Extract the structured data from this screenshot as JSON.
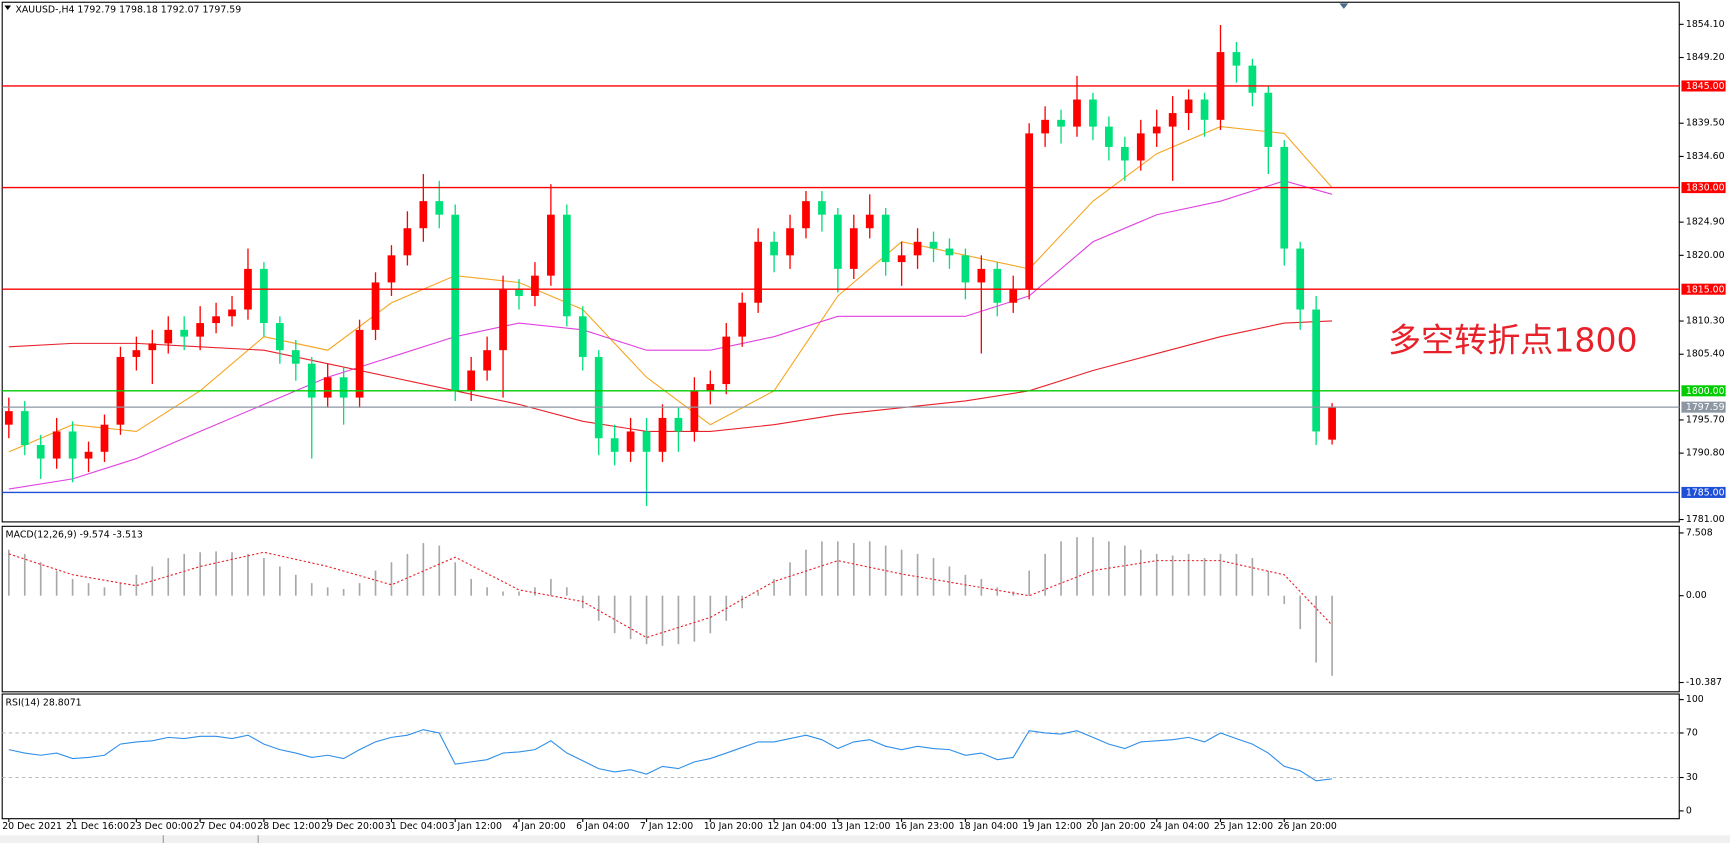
{
  "chart_data": [
    {
      "type": "candlestick",
      "title": "XAUUSD-,H4  1792.79 1798.18 1792.07 1797.59",
      "annotation": "多空转折点1800",
      "up_color": "#ff0000",
      "down_color": "#00e07a",
      "ylim": [
        1780.65,
        1857.36
      ],
      "yticks": [
        {
          "value": 1854.1,
          "label": "1854.10"
        },
        {
          "value": 1849.2,
          "label": "1849.20"
        },
        {
          "value": 1839.5,
          "label": "1839.50"
        },
        {
          "value": 1834.6,
          "label": "1834.60"
        },
        {
          "value": 1824.9,
          "label": "1824.90"
        },
        {
          "value": 1820.0,
          "label": "1820.00"
        },
        {
          "value": 1810.3,
          "label": "1810.30"
        },
        {
          "value": 1805.4,
          "label": "1805.40"
        },
        {
          "value": 1795.7,
          "label": "1795.70"
        },
        {
          "value": 1790.8,
          "label": "1790.80"
        },
        {
          "value": 1781.0,
          "label": "1781.00"
        }
      ],
      "levels": [
        {
          "value": 1845,
          "label": "1845.00",
          "color": "#ff0000"
        },
        {
          "value": 1830,
          "label": "1830.00",
          "color": "#ff0000"
        },
        {
          "value": 1815,
          "label": "1815.00",
          "color": "#ff0000"
        },
        {
          "value": 1800,
          "label": "1800.00",
          "color": "#00cc00"
        },
        {
          "value": 1785,
          "label": "1785.00",
          "color": "#1e4fd8"
        },
        {
          "value": 1797.59,
          "label": "1797.59",
          "color": "#8c97a3"
        }
      ],
      "categories": [
        "20 Dec 2021",
        null,
        null,
        null,
        "21 Dec 16:00",
        null,
        null,
        null,
        "23 Dec 00:00",
        null,
        null,
        null,
        "27 Dec 04:00",
        null,
        null,
        null,
        "28 Dec 12:00",
        null,
        null,
        null,
        "29 Dec 20:00",
        null,
        null,
        null,
        "31 Dec 04:00",
        null,
        null,
        null,
        "3 Jan 12:00",
        null,
        null,
        null,
        "4 Jan 20:00",
        null,
        null,
        null,
        "6 Jan 04:00",
        null,
        null,
        null,
        "7 Jan 12:00",
        null,
        null,
        null,
        "10 Jan 20:00",
        null,
        null,
        null,
        "12 Jan 04:00",
        null,
        null,
        null,
        "13 Jan 12:00",
        null,
        null,
        null,
        "16 Jan 23:00",
        null,
        null,
        null,
        "18 Jan 04:00",
        null,
        null,
        null,
        "19 Jan 12:00",
        null,
        null,
        null,
        "20 Jan 20:00",
        null,
        null,
        null,
        "24 Jan 04:00",
        null,
        null,
        null,
        "25 Jan 12:00",
        null,
        null,
        null,
        "26 Jan 20:00",
        null,
        null,
        null
      ],
      "open": [
        1795,
        1797,
        1792,
        1790,
        1794,
        1790,
        1791,
        1795,
        1805,
        1806,
        1807,
        1809,
        1808,
        1810,
        1811,
        1812,
        1818,
        1810,
        1806,
        1804,
        1799,
        1802,
        1799,
        1809,
        1816,
        1820,
        1824,
        1828,
        1826,
        1800,
        1803,
        1806,
        1815,
        1814,
        1817,
        1826,
        1811,
        1805,
        1793,
        1791,
        1794,
        1791,
        1796,
        1794,
        1800,
        1801,
        1808,
        1813,
        1822,
        1820,
        1824,
        1828,
        1826,
        1818,
        1824,
        1826,
        1819,
        1820,
        1822,
        1821,
        1820,
        1816,
        1818,
        1813,
        1815,
        1838,
        1840,
        1839,
        1843,
        1839,
        1836,
        1834,
        1838,
        1839,
        1841,
        1843,
        1840,
        1850,
        1848,
        1844,
        1836,
        1821,
        1812,
        1792.79
      ],
      "high": [
        1799,
        1798.5,
        1793.5,
        1796,
        1795.5,
        1792.5,
        1796.5,
        1806.5,
        1808,
        1809,
        1811,
        1811,
        1812.5,
        1813,
        1814,
        1821,
        1819,
        1811,
        1807.5,
        1805,
        1804,
        1803.5,
        1810.5,
        1817.5,
        1821.5,
        1826.5,
        1832,
        1831,
        1827.5,
        1805,
        1808,
        1817,
        1816.5,
        1819,
        1830.5,
        1827.5,
        1812.5,
        1806,
        1795,
        1796,
        1796,
        1798,
        1797.5,
        1802,
        1803,
        1810,
        1814.5,
        1824,
        1823.5,
        1826,
        1829.5,
        1829.5,
        1827,
        1826,
        1829,
        1827,
        1822,
        1824,
        1823.5,
        1822.5,
        1821,
        1820,
        1819,
        1817,
        1839.5,
        1842,
        1841.5,
        1846.5,
        1844,
        1840.5,
        1837.5,
        1840,
        1841.5,
        1843.5,
        1844.5,
        1844,
        1854,
        1851.5,
        1849,
        1845,
        1837,
        1822,
        1814,
        1798.18
      ],
      "low": [
        1793,
        1790.5,
        1787,
        1788.5,
        1786.5,
        1788,
        1789.5,
        1793.5,
        1803,
        1801,
        1805.5,
        1806,
        1806,
        1808.5,
        1809.5,
        1810.5,
        1808,
        1804,
        1801.5,
        1790,
        1797.5,
        1795,
        1797.5,
        1807.5,
        1814,
        1818.5,
        1822,
        1824,
        1798.5,
        1798.5,
        1801.5,
        1799,
        1812,
        1812.5,
        1815.5,
        1809.5,
        1803,
        1790.5,
        1789,
        1789.5,
        1783,
        1789.5,
        1791,
        1792.5,
        1798,
        1799.5,
        1806.5,
        1811.5,
        1817.5,
        1818,
        1822.5,
        1823.5,
        1814.5,
        1816.5,
        1822.5,
        1817,
        1815.5,
        1818,
        1819,
        1818,
        1813.5,
        1805.5,
        1811,
        1811.5,
        1813.5,
        1836,
        1836.5,
        1837.5,
        1837,
        1834,
        1831,
        1832.5,
        1836,
        1831,
        1838.5,
        1837.5,
        1838.5,
        1845.5,
        1842,
        1832,
        1818.5,
        1809,
        1792,
        1792.07
      ],
      "close": [
        1797,
        1792,
        1790,
        1794,
        1790,
        1791,
        1795,
        1805,
        1806,
        1807,
        1809,
        1808,
        1810,
        1811,
        1812,
        1818,
        1810,
        1806,
        1804,
        1799,
        1802,
        1799,
        1809,
        1816,
        1820,
        1824,
        1828,
        1826,
        1800,
        1803,
        1806,
        1815,
        1814,
        1817,
        1826,
        1811,
        1805,
        1793,
        1791,
        1794,
        1791,
        1796,
        1794,
        1800,
        1801,
        1808,
        1813,
        1822,
        1820,
        1824,
        1828,
        1826,
        1818,
        1824,
        1826,
        1819,
        1820,
        1822,
        1821,
        1820,
        1816,
        1818,
        1813,
        1815,
        1838,
        1840,
        1839,
        1843,
        1839,
        1836,
        1834,
        1838,
        1839,
        1841,
        1843,
        1840,
        1850,
        1848,
        1844,
        1836,
        1821,
        1812,
        1794,
        1797.59
      ],
      "series": [
        {
          "color": "#f5a623",
          "x": [
            0,
            4,
            8,
            12,
            16,
            20,
            24,
            28,
            32,
            36,
            40,
            44,
            48,
            52,
            56,
            60,
            64,
            68,
            72,
            76,
            80,
            83
          ],
          "values": [
            1791,
            1795,
            1794,
            1800,
            1808,
            1806,
            1813,
            1817,
            1816,
            1812,
            1802,
            1795,
            1800,
            1814,
            1822,
            1820,
            1818,
            1828,
            1835,
            1839,
            1838,
            1830
          ]
        },
        {
          "color": "#e040e0",
          "x": [
            0,
            4,
            8,
            12,
            16,
            20,
            24,
            28,
            32,
            36,
            40,
            44,
            48,
            52,
            56,
            60,
            64,
            68,
            72,
            76,
            80,
            83
          ],
          "values": [
            1785.5,
            1787,
            1790,
            1794,
            1798,
            1802,
            1805,
            1808,
            1810,
            1809,
            1806,
            1806,
            1808,
            1811,
            1811,
            1811,
            1814,
            1822,
            1826,
            1828,
            1831,
            1829
          ]
        },
        {
          "color": "#e8202a",
          "x": [
            0,
            4,
            8,
            12,
            16,
            20,
            24,
            28,
            32,
            36,
            40,
            44,
            48,
            52,
            56,
            60,
            64,
            68,
            72,
            76,
            80,
            83
          ],
          "values": [
            1806.5,
            1807,
            1807,
            1806.5,
            1806,
            1804,
            1802,
            1800,
            1798,
            1795.5,
            1794,
            1794,
            1795,
            1796.5,
            1797.5,
            1798.5,
            1800,
            1803,
            1805.5,
            1808,
            1810,
            1810.3
          ]
        }
      ]
    },
    {
      "type": "macd",
      "title": "MACD(12,26,9) -9.574 -3.513",
      "ylim": [
        -11.5,
        8.3
      ],
      "yticks": [
        7.508,
        {
          "value": 0,
          "label": "0.00"
        },
        -10.387
      ],
      "values": [
        5.5,
        5,
        4,
        3,
        2,
        1.5,
        1,
        1.5,
        2.5,
        3.5,
        4.5,
        5,
        5.2,
        5.3,
        5.2,
        5,
        4.5,
        3.5,
        2.5,
        1.5,
        1,
        0.8,
        1.5,
        3,
        4,
        5,
        6.3,
        6,
        4,
        2,
        1,
        0.5,
        0.5,
        1,
        2,
        1,
        -1.5,
        -3,
        -4.5,
        -5.2,
        -5.8,
        -6,
        -5.8,
        -5.5,
        -4.5,
        -3,
        -1.5,
        0.5,
        2,
        4,
        5.5,
        6.5,
        6.5,
        6.3,
        6.5,
        6,
        5.5,
        5,
        4.5,
        3.5,
        2.5,
        2,
        1,
        0.5,
        3,
        5,
        6.5,
        7,
        7,
        6.5,
        6,
        5.5,
        5,
        4.8,
        5,
        4.5,
        5,
        5,
        4.5,
        3,
        -1,
        -4,
        -8,
        -9.574
      ],
      "color": "#a8a8a8",
      "series": [
        {
          "color": "#e8202a",
          "x": [
            0,
            4,
            8,
            12,
            16,
            20,
            24,
            28,
            32,
            36,
            40,
            44,
            48,
            52,
            56,
            60,
            64,
            68,
            72,
            76,
            80,
            83
          ],
          "values": [
            5,
            2.5,
            1.2,
            3.5,
            5.2,
            3.5,
            1.3,
            4.6,
            0.7,
            -0.7,
            -5,
            -2.6,
            1.7,
            4.2,
            2.6,
            1.3,
            0,
            3,
            4.2,
            4.2,
            2.5,
            -3.513
          ]
        }
      ]
    },
    {
      "type": "line",
      "title": "RSI(14) 28.8071",
      "ylim": [
        -7,
        105
      ],
      "yticks": [
        100,
        70,
        30,
        0
      ],
      "levels": [
        70,
        30
      ],
      "color": "#2f8fe8",
      "values": [
        55,
        52,
        50,
        52,
        47,
        48,
        50,
        60,
        62,
        63,
        66,
        65,
        67,
        67,
        65,
        68,
        60,
        55,
        52,
        48,
        50,
        47,
        55,
        62,
        66,
        68,
        73,
        70,
        42,
        44,
        46,
        52,
        53,
        55,
        63,
        52,
        45,
        38,
        35,
        37,
        33,
        40,
        38,
        44,
        47,
        52,
        57,
        62,
        62,
        65,
        68,
        64,
        56,
        62,
        64,
        58,
        55,
        58,
        56,
        55,
        50,
        52,
        46,
        48,
        72,
        70,
        69,
        72,
        66,
        60,
        56,
        62,
        63,
        64,
        66,
        62,
        70,
        65,
        60,
        52,
        40,
        36,
        27,
        28.8071
      ]
    }
  ]
}
